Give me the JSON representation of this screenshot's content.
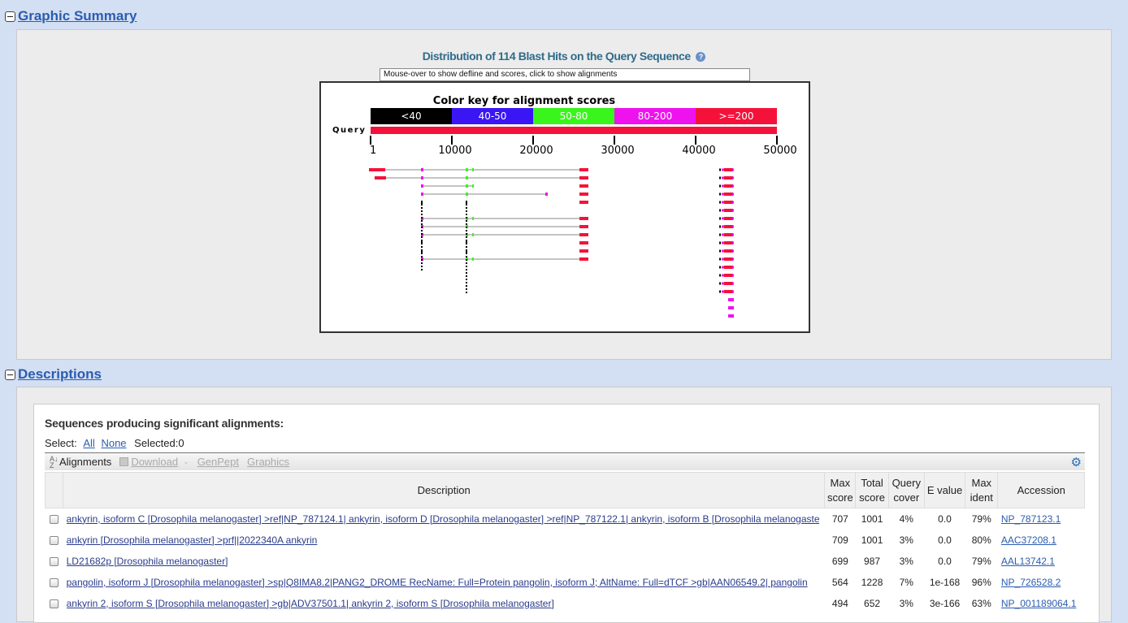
{
  "graphic_summary": {
    "title": "Graphic Summary",
    "distribution_title": "Distribution of 114 Blast Hits on the Query Sequence",
    "mouseover_text": "Mouse-over to show defline and scores, click to show alignments",
    "color_key_title": "Color key for alignment scores",
    "color_key": [
      {
        "label": "<40",
        "color": "#000000"
      },
      {
        "label": "40-50",
        "color": "#3a16f5"
      },
      {
        "label": "50-80",
        "color": "#3af51c"
      },
      {
        "label": "80-200",
        "color": "#ee12ee"
      },
      {
        "label": ">=200",
        "color": "#f5123a"
      }
    ],
    "query_label": "Query",
    "axis_ticks": [
      "1",
      "10000",
      "20000",
      "30000",
      "40000",
      "50000"
    ]
  },
  "descriptions": {
    "title": "Descriptions",
    "sig_title": "Sequences producing significant alignments:",
    "select_label": "Select:",
    "select_all": "All",
    "select_none": "None",
    "selected_count": "Selected:0",
    "toolbar": {
      "alignments": "Alignments",
      "download": "Download",
      "genpept": "GenPept",
      "graphics": "Graphics"
    },
    "columns": [
      {
        "key": "description",
        "label": "Description"
      },
      {
        "key": "max_score",
        "label": "Max score"
      },
      {
        "key": "total_score",
        "label": "Total score"
      },
      {
        "key": "query_cover",
        "label": "Query cover"
      },
      {
        "key": "e_value",
        "label": "E value"
      },
      {
        "key": "max_ident",
        "label": "Max ident"
      },
      {
        "key": "accession",
        "label": "Accession"
      }
    ],
    "rows": [
      {
        "description": "ankyrin, isoform C [Drosophila melanogaster] >ref|NP_787124.1| ankyrin, isoform D [Drosophila melanogaster] >ref|NP_787122.1| ankyrin, isoform B [Drosophila melanogaster]",
        "max_score": "707",
        "total_score": "1001",
        "query_cover": "4%",
        "e_value": "0.0",
        "max_ident": "79%",
        "accession": "NP_787123.1"
      },
      {
        "description": "ankyrin [Drosophila melanogaster] >prf||2022340A ankyrin",
        "max_score": "709",
        "total_score": "1001",
        "query_cover": "3%",
        "e_value": "0.0",
        "max_ident": "80%",
        "accession": "AAC37208.1"
      },
      {
        "description": "LD21682p [Drosophila melanogaster]",
        "max_score": "699",
        "total_score": "987",
        "query_cover": "3%",
        "e_value": "0.0",
        "max_ident": "79%",
        "accession": "AAL13742.1"
      },
      {
        "description": "pangolin, isoform J [Drosophila melanogaster] >sp|Q8IMA8.2|PANG2_DROME RecName: Full=Protein pangolin, isoform J; AltName: Full=dTCF >gb|AAN06549.2| pangolin",
        "max_score": "564",
        "total_score": "1228",
        "query_cover": "7%",
        "e_value": "1e-168",
        "max_ident": "96%",
        "accession": "NP_726528.2"
      },
      {
        "description": "ankyrin 2, isoform S [Drosophila melanogaster] >gb|ADV37501.1| ankyrin 2, isoform S [Drosophila melanogaster]",
        "max_score": "494",
        "total_score": "652",
        "query_cover": "3%",
        "e_value": "3e-166",
        "max_ident": "63%",
        "accession": "NP_001189064.1"
      }
    ]
  }
}
